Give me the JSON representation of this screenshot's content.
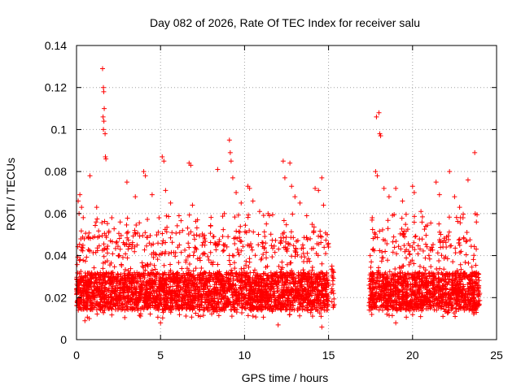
{
  "chart_data": {
    "type": "scatter",
    "title": "Day 082 of 2026, Rate Of TEC Index for receiver salu",
    "xlabel": "GPS time / hours",
    "ylabel": "ROTI / TECUs",
    "xlim": [
      0,
      25
    ],
    "ylim": [
      0,
      0.14
    ],
    "xticks": [
      0,
      5,
      10,
      15,
      20,
      25
    ],
    "xtick_labels": [
      "0",
      "5",
      "10",
      "15",
      "20",
      "25"
    ],
    "yticks": [
      0,
      0.02,
      0.04,
      0.06,
      0.08,
      0.1,
      0.12,
      0.14
    ],
    "ytick_labels": [
      "0",
      "0.02",
      "0.04",
      "0.06",
      "0.08",
      "0.1",
      "0.12",
      "0.14"
    ],
    "grid": true,
    "marker": "+",
    "color": "#ff0000",
    "series": [
      {
        "name": "ROTI",
        "coverage_segments": [
          [
            0.0,
            15.0
          ],
          [
            17.4,
            24.0
          ]
        ],
        "sparse_interval": [
          15.0,
          17.4
        ],
        "typical_range": [
          0.01,
          0.04
        ],
        "points": [
          [
            1.55,
            0.129
          ],
          [
            1.6,
            0.12
          ],
          [
            1.62,
            0.118
          ],
          [
            1.65,
            0.11
          ],
          [
            1.58,
            0.106
          ],
          [
            1.63,
            0.104
          ],
          [
            1.6,
            0.1
          ],
          [
            1.7,
            0.098
          ],
          [
            1.72,
            0.087
          ],
          [
            1.75,
            0.086
          ],
          [
            0.2,
            0.069
          ],
          [
            0.1,
            0.066
          ],
          [
            0.3,
            0.063
          ],
          [
            0.15,
            0.06
          ],
          [
            0.8,
            0.078
          ],
          [
            1.2,
            0.063
          ],
          [
            2.1,
            0.058
          ],
          [
            2.6,
            0.056
          ],
          [
            3.0,
            0.075
          ],
          [
            3.5,
            0.068
          ],
          [
            4.0,
            0.08
          ],
          [
            4.1,
            0.078
          ],
          [
            4.5,
            0.069
          ],
          [
            5.1,
            0.087
          ],
          [
            5.2,
            0.085
          ],
          [
            5.3,
            0.071
          ],
          [
            5.6,
            0.065
          ],
          [
            6.1,
            0.059
          ],
          [
            6.7,
            0.084
          ],
          [
            6.8,
            0.083
          ],
          [
            6.9,
            0.064
          ],
          [
            7.2,
            0.057
          ],
          [
            8.4,
            0.081
          ],
          [
            8.8,
            0.06
          ],
          [
            9.1,
            0.095
          ],
          [
            9.15,
            0.089
          ],
          [
            9.2,
            0.085
          ],
          [
            9.3,
            0.077
          ],
          [
            9.5,
            0.07
          ],
          [
            9.8,
            0.065
          ],
          [
            10.2,
            0.073
          ],
          [
            10.3,
            0.072
          ],
          [
            10.5,
            0.066
          ],
          [
            10.9,
            0.061
          ],
          [
            11.4,
            0.06
          ],
          [
            12.3,
            0.085
          ],
          [
            12.4,
            0.077
          ],
          [
            12.7,
            0.084
          ],
          [
            12.8,
            0.073
          ],
          [
            13.0,
            0.068
          ],
          [
            13.3,
            0.065
          ],
          [
            13.7,
            0.059
          ],
          [
            14.2,
            0.072
          ],
          [
            14.4,
            0.071
          ],
          [
            14.6,
            0.077
          ],
          [
            14.7,
            0.064
          ],
          [
            15.2,
            0.035
          ],
          [
            15.3,
            0.032
          ],
          [
            15.25,
            0.028
          ],
          [
            15.3,
            0.022
          ],
          [
            15.2,
            0.018
          ],
          [
            15.3,
            0.016
          ],
          [
            17.6,
            0.058
          ],
          [
            17.8,
            0.08
          ],
          [
            17.9,
            0.078
          ],
          [
            17.85,
            0.106
          ],
          [
            18.0,
            0.108
          ],
          [
            18.05,
            0.098
          ],
          [
            18.1,
            0.097
          ],
          [
            18.3,
            0.072
          ],
          [
            18.6,
            0.068
          ],
          [
            19.0,
            0.072
          ],
          [
            19.4,
            0.066
          ],
          [
            20.0,
            0.073
          ],
          [
            20.1,
            0.07
          ],
          [
            20.5,
            0.061
          ],
          [
            21.4,
            0.075
          ],
          [
            21.6,
            0.069
          ],
          [
            22.2,
            0.08
          ],
          [
            22.5,
            0.068
          ],
          [
            22.8,
            0.063
          ],
          [
            23.0,
            0.058
          ],
          [
            23.3,
            0.076
          ],
          [
            23.7,
            0.089
          ],
          [
            23.8,
            0.056
          ],
          [
            14.6,
            0.006
          ],
          [
            0.5,
            0.009
          ],
          [
            5.0,
            0.008
          ],
          [
            12.0,
            0.007
          ],
          [
            19.0,
            0.008
          ]
        ]
      }
    ]
  }
}
